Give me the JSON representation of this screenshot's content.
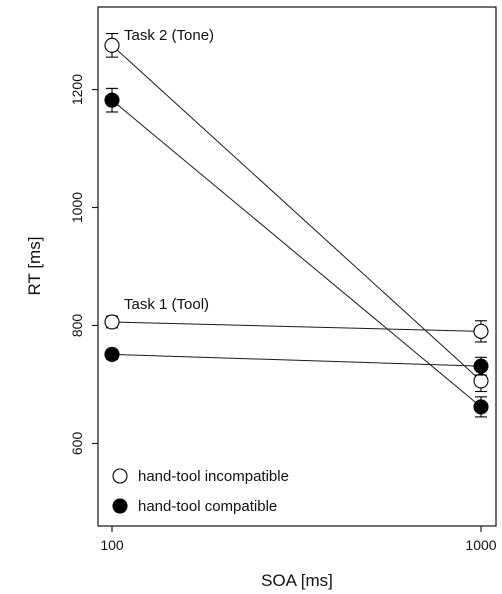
{
  "chart_data": {
    "type": "line",
    "title": "",
    "xlabel": "SOA [ms]",
    "ylabel": "RT [ms]",
    "x": [
      100,
      1000
    ],
    "x_tick_labels": [
      "100",
      "1000"
    ],
    "ylim": [
      460,
      1340
    ],
    "y_ticks": [
      600,
      800,
      1000,
      1200
    ],
    "y_tick_labels": [
      "600",
      "800",
      "1000",
      "1200"
    ],
    "grid": false,
    "legend_position": "bottom-left",
    "annotations": [
      {
        "id": "task2",
        "text": "Task 2 (Tone)"
      },
      {
        "id": "task1",
        "text": "Task 1 (Tool)"
      }
    ],
    "series": [
      {
        "task": "task2",
        "condition": "incompatible",
        "marker": "open",
        "values": [
          1275,
          706
        ],
        "errors": [
          20,
          18
        ]
      },
      {
        "task": "task2",
        "condition": "compatible",
        "marker": "filled",
        "values": [
          1182,
          662
        ],
        "errors": [
          20,
          17
        ]
      },
      {
        "task": "task1",
        "condition": "incompatible",
        "marker": "open",
        "values": [
          806,
          790
        ],
        "errors": [
          10,
          18
        ]
      },
      {
        "task": "task1",
        "condition": "compatible",
        "marker": "filled",
        "values": [
          751,
          731
        ],
        "errors": [
          8,
          15
        ]
      }
    ],
    "legend": [
      {
        "marker": "open",
        "label": "hand-tool incompatible"
      },
      {
        "marker": "filled",
        "label": "hand-tool compatible"
      }
    ],
    "colors": {
      "axis": "#111111",
      "line": "#1a1a1a",
      "marker_fill_open": "#ffffff",
      "marker_fill_filled": "#000000"
    }
  }
}
